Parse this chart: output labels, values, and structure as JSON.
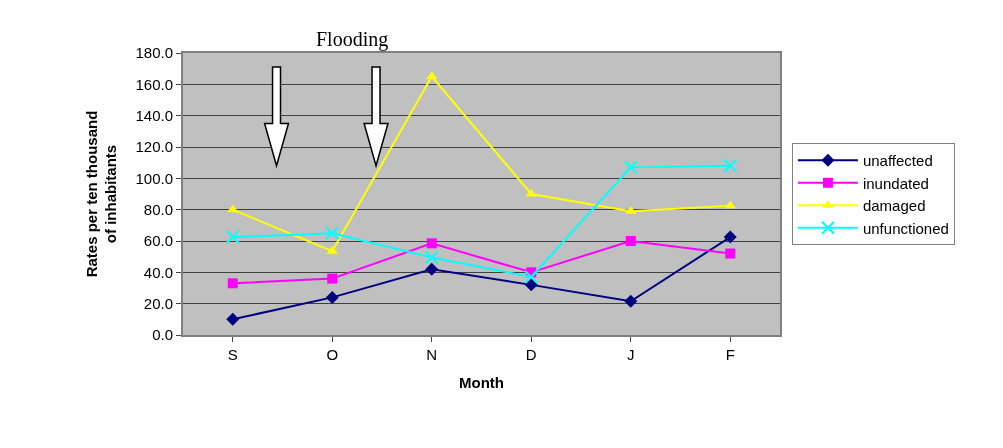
{
  "chart_data": {
    "type": "line",
    "xlabel": "Month",
    "ylabel": "Rates per ten thousand of inhabitants",
    "categories": [
      "S",
      "O",
      "N",
      "D",
      "J",
      "F"
    ],
    "series": [
      {
        "name": "unaffected",
        "color": "#000080",
        "marker": "diamond",
        "values": [
          10,
          24,
          42,
          32,
          21.5,
          62.5
        ]
      },
      {
        "name": "inundated",
        "color": "#ff00ff",
        "marker": "square",
        "values": [
          33,
          36,
          58.5,
          40,
          60,
          52
        ]
      },
      {
        "name": "damaged",
        "color": "#ffff00",
        "marker": "triangle",
        "values": [
          80,
          53.5,
          165,
          90,
          79,
          82.5
        ]
      },
      {
        "name": "unfunctioned",
        "color": "#00ffff",
        "marker": "cross",
        "values": [
          62.5,
          65,
          49.5,
          37,
          107,
          108
        ]
      }
    ],
    "ylim": [
      0,
      180
    ],
    "yticks": [
      {
        "value": 0,
        "label": "0.0"
      },
      {
        "value": 20,
        "label": "20.0"
      },
      {
        "value": 40,
        "label": "40.0"
      },
      {
        "value": 60,
        "label": "60.0"
      },
      {
        "value": 80,
        "label": "80.0"
      },
      {
        "value": 100,
        "label": "100.0"
      },
      {
        "value": 120,
        "label": "120.0"
      },
      {
        "value": 140,
        "label": "140.0"
      },
      {
        "value": 160,
        "label": "160.0"
      },
      {
        "value": 180,
        "label": "180.0"
      }
    ],
    "grid": "y",
    "legend": "right",
    "line_style": "solid",
    "annotations": [
      "Flooding"
    ]
  }
}
